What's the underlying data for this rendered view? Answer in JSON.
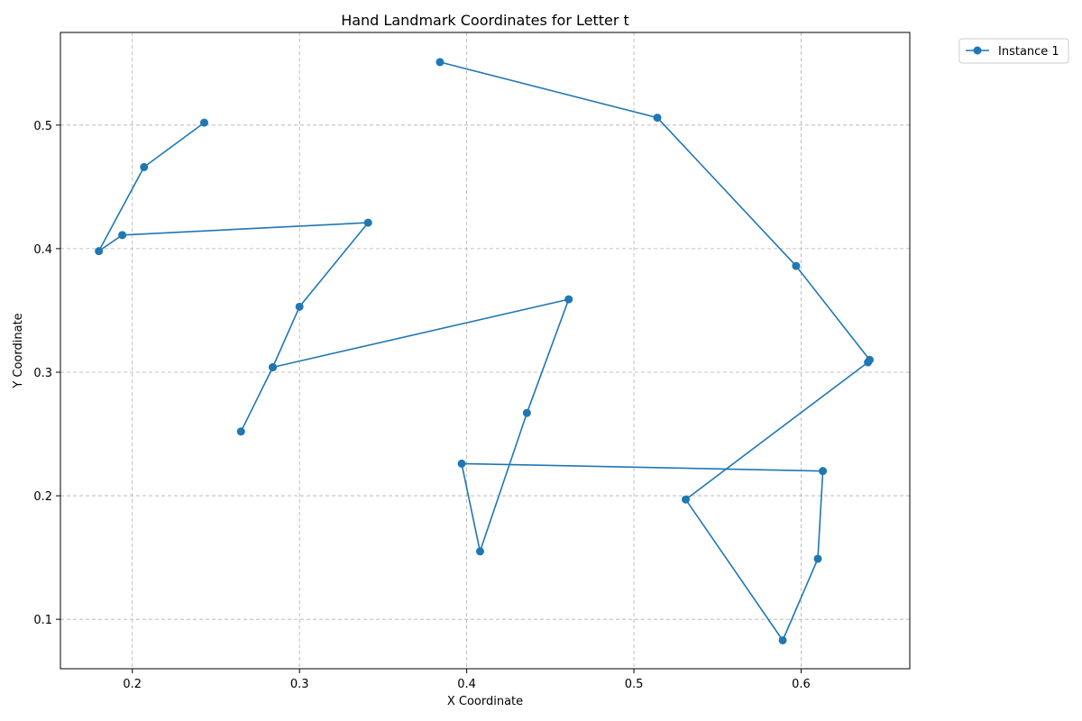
{
  "chart_data": {
    "type": "line",
    "title": "Hand Landmark Coordinates for Letter t",
    "xlabel": "X Coordinate",
    "ylabel": "Y Coordinate",
    "xlim": [
      0.157,
      0.665
    ],
    "ylim": [
      0.06,
      0.575
    ],
    "xticks": [
      0.2,
      0.3,
      0.4,
      0.5,
      0.6
    ],
    "yticks": [
      0.1,
      0.2,
      0.3,
      0.4,
      0.5
    ],
    "xtick_labels": [
      "0.2",
      "0.3",
      "0.4",
      "0.5",
      "0.6"
    ],
    "ytick_labels": [
      "0.1",
      "0.2",
      "0.3",
      "0.4",
      "0.5"
    ],
    "grid": true,
    "legend_position": "outside-top-right",
    "series": [
      {
        "name": "Instance 1",
        "color": "#1f77b4",
        "marker": "circle",
        "x": [
          0.243,
          0.207,
          0.18,
          0.194,
          0.341,
          0.3,
          0.284,
          0.265,
          0.284,
          0.461,
          0.436,
          0.408,
          0.397,
          0.613,
          0.61,
          0.589,
          0.531,
          0.64,
          0.641,
          0.597,
          0.514,
          0.384
        ],
        "y": [
          0.502,
          0.466,
          0.398,
          0.411,
          0.421,
          0.353,
          0.304,
          0.252,
          0.304,
          0.359,
          0.267,
          0.155,
          0.226,
          0.22,
          0.149,
          0.083,
          0.197,
          0.308,
          0.31,
          0.386,
          0.506,
          0.551
        ]
      }
    ]
  }
}
